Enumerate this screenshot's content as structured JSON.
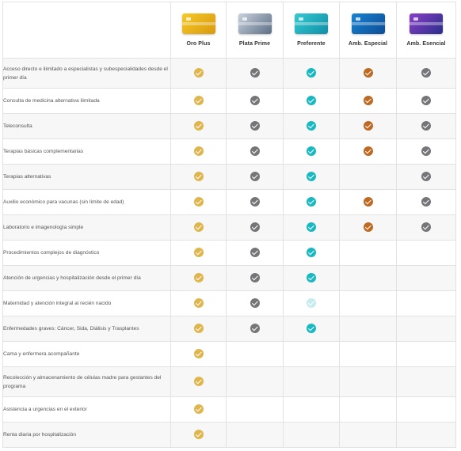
{
  "plans": [
    {
      "name": "Oro Plus",
      "card_color_a": "#f5c928",
      "card_color_b": "#d99a10",
      "check_color": "#e0b54c"
    },
    {
      "name": "Plata Prime",
      "card_color_a": "#c8d0dc",
      "card_color_b": "#5d6f87",
      "check_color": "#76767a"
    },
    {
      "name": "Preferente",
      "card_color_a": "#37c9cf",
      "card_color_b": "#0f8fa8",
      "check_color": "#18b9c2"
    },
    {
      "name": "Amb. Especial",
      "card_color_a": "#1a83d0",
      "card_color_b": "#0d4d96",
      "check_color": "#bf6a22"
    },
    {
      "name": "Amb. Esencial",
      "card_color_a": "#8a3fc7",
      "card_color_b": "#2a2f8a",
      "check_color": "#76767a"
    }
  ],
  "faded_check_color": "#c8ebf0",
  "rows": [
    {
      "label": "Acceso directo e ilimitado a especialistas y subespecialidades desde el primer día",
      "checks": [
        1,
        1,
        1,
        1,
        1
      ]
    },
    {
      "label": "Consulta de medicina alternativa ilimitada",
      "checks": [
        1,
        1,
        1,
        1,
        1
      ]
    },
    {
      "label": "Teleconsulta",
      "checks": [
        1,
        1,
        1,
        1,
        1
      ]
    },
    {
      "label": "Terapias básicas complementarias",
      "checks": [
        1,
        1,
        1,
        1,
        1
      ]
    },
    {
      "label": "Terapias alternativas",
      "checks": [
        1,
        1,
        1,
        0,
        1
      ]
    },
    {
      "label": "Auxilio económico para vacunas (sin límite de edad)",
      "checks": [
        1,
        1,
        1,
        1,
        1
      ]
    },
    {
      "label": "Laboratorio e imagenología simple",
      "checks": [
        1,
        1,
        1,
        1,
        1
      ]
    },
    {
      "label": "Procedimientos complejos de diagnóstico",
      "checks": [
        1,
        1,
        1,
        0,
        0
      ]
    },
    {
      "label": "Atención de urgencias y hospitalización desde el primer día",
      "checks": [
        1,
        1,
        1,
        0,
        0
      ]
    },
    {
      "label": "Maternidad y atención integral al recién nacido",
      "checks": [
        1,
        1,
        2,
        0,
        0
      ]
    },
    {
      "label": "Enfermedades graves: Cáncer, Sida, Diálisis y Trasplantes",
      "checks": [
        1,
        1,
        1,
        0,
        0
      ]
    },
    {
      "label": "Cama y enfermera acompañante",
      "checks": [
        1,
        0,
        0,
        0,
        0
      ]
    },
    {
      "label": "Recolección y almacenamiento de células madre para gestantes del programa",
      "checks": [
        1,
        0,
        0,
        0,
        0
      ]
    },
    {
      "label": "Asistencia a urgencias en el exterior",
      "checks": [
        1,
        0,
        0,
        0,
        0
      ]
    },
    {
      "label": "Renta diaria por hospitalización",
      "checks": [
        1,
        0,
        0,
        0,
        0
      ]
    }
  ]
}
